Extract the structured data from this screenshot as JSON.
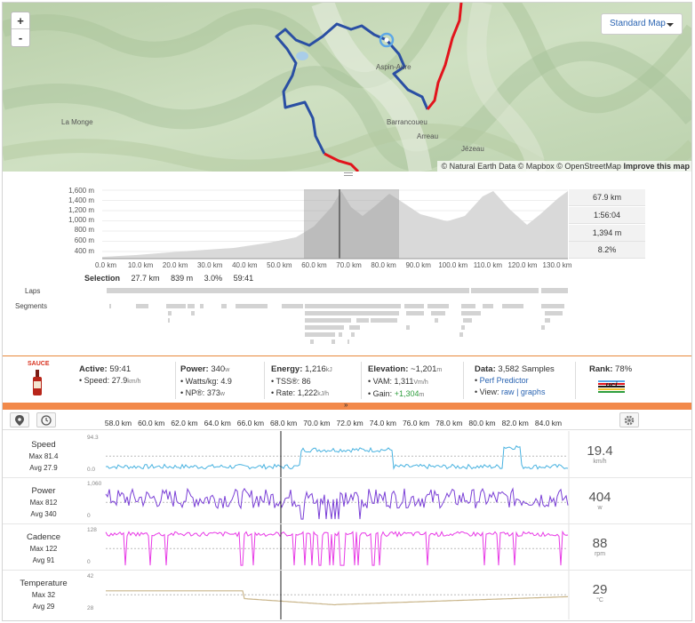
{
  "map": {
    "zoom_in": "+",
    "zoom_out": "-",
    "style_select": "Standard Map",
    "attribution_text": "© Natural Earth Data © Mapbox © OpenStreetMap",
    "improve_link": "Improve this map",
    "places": [
      "La Monge",
      "Aspin-Aure",
      "Barrancoueu",
      "Arreau",
      "Jézeau"
    ],
    "route_color": "#2a4fa3",
    "other_route_color": "#e2141c"
  },
  "elevation": {
    "y_ticks": [
      "1,600 m",
      "1,400 m",
      "1,200 m",
      "1,000 m",
      "800 m",
      "600 m",
      "400 m"
    ],
    "x_ticks": [
      "0.0 km",
      "10.0 km",
      "20.0 km",
      "30.0 km",
      "40.0 km",
      "50.0 km",
      "60.0 km",
      "70.0 km",
      "80.0 km",
      "90.0 km",
      "100.0 km",
      "110.0 km",
      "120.0 km",
      "130.0 km"
    ],
    "selection_label": "Selection",
    "selection_values": [
      "27.7 km",
      "839 m",
      "3.0%",
      "59:41"
    ],
    "stats": [
      "67.9 km",
      "1:56:04",
      "1,394 m",
      "8.2%"
    ],
    "laps_label": "Laps",
    "segments_label": "Segments"
  },
  "summary": {
    "sauce_label": "SAUCE",
    "active": {
      "label": "Active:",
      "value": "59:41",
      "speed_label": "Speed:",
      "speed": "27.9",
      "speed_unit": "km/h"
    },
    "power": {
      "label": "Power:",
      "value": "340",
      "unit": "w",
      "wkg_label": "Watts/kg:",
      "wkg": "4.9",
      "np_label": "NP®:",
      "np": "373",
      "np_unit": "w"
    },
    "energy": {
      "label": "Energy:",
      "value": "1,216",
      "unit": "kJ",
      "tss_label": "TSS®:",
      "tss": "86",
      "rate_label": "Rate:",
      "rate": "1,222",
      "rate_unit": "kJ/h"
    },
    "elevation": {
      "label": "Elevation:",
      "value": "~1,201",
      "unit": "m",
      "vam_label": "VAM:",
      "vam": "1,311",
      "vam_unit": "Vm/h",
      "gain_label": "Gain:",
      "gain": "+1,304",
      "gain_unit": "m"
    },
    "data": {
      "label": "Data:",
      "value": "3,582 Samples",
      "perf_link": "Perf Predictor",
      "view_label": "View:",
      "raw_link": "raw",
      "sep": "|",
      "graphs_link": "graphs"
    },
    "rank": {
      "label": "Rank:",
      "value": "78%",
      "badge_text": "uci"
    }
  },
  "streams": {
    "collapse_arrow": "»",
    "km_ticks": [
      "58.0 km",
      "60.0 km",
      "62.0 km",
      "64.0 km",
      "66.0 km",
      "68.0 km",
      "70.0 km",
      "72.0 km",
      "74.0 km",
      "76.0 km",
      "78.0 km",
      "80.0 km",
      "82.0 km",
      "84.0 km"
    ],
    "rows": [
      {
        "name": "Speed",
        "max": "Max 81.4",
        "avg": "Avg 27.9",
        "ymax": "94.3",
        "ymin": "0.0",
        "value": "19.4",
        "unit": "km/h",
        "color": "#48b2e0"
      },
      {
        "name": "Power",
        "max": "Max 812",
        "avg": "Avg 340",
        "ymax": "1,060",
        "ymin": "0",
        "value": "404",
        "unit": "w",
        "color": "#7a3fd6"
      },
      {
        "name": "Cadence",
        "max": "Max 122",
        "avg": "Avg 91",
        "ymax": "128",
        "ymin": "0",
        "value": "88",
        "unit": "rpm",
        "color": "#e83ae6"
      },
      {
        "name": "Temperature",
        "max": "Max 32",
        "avg": "Avg 29",
        "ymax": "42",
        "ymin": "28",
        "value": "29",
        "unit": "°C",
        "color": "#c9b58a"
      }
    ]
  }
}
